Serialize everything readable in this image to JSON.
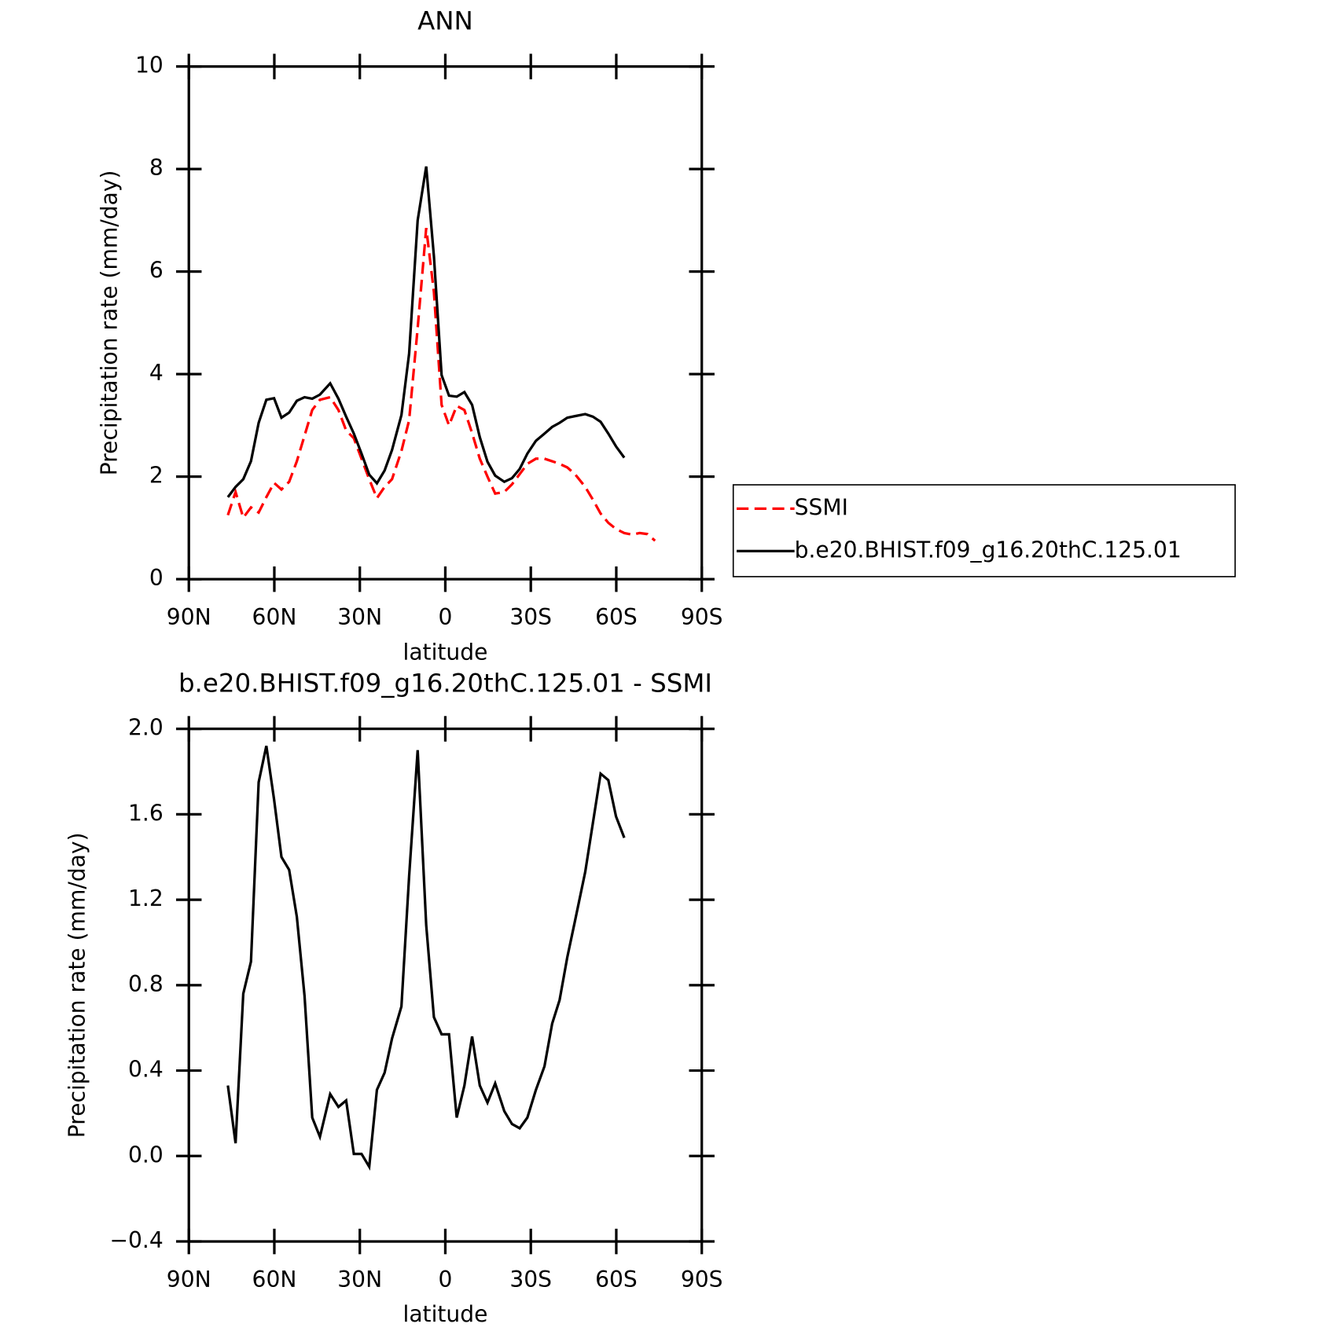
{
  "chart_data": [
    {
      "type": "line",
      "title": "ANN",
      "xlabel": "latitude",
      "ylabel": "Precipitation rate (mm/day)",
      "x": [
        76.3,
        73.6,
        70.9,
        68.2,
        65.5,
        62.8,
        60.1,
        57.5,
        54.8,
        52.1,
        49.4,
        46.7,
        44.0,
        40.4,
        37.5,
        34.8,
        32.1,
        29.4,
        26.7,
        24.0,
        21.3,
        18.7,
        15.4,
        12.7,
        9.7,
        6.7,
        4.0,
        1.3,
        -1.3,
        -4.0,
        -6.7,
        -9.4,
        -12.1,
        -14.8,
        -17.5,
        -20.7,
        -23.4,
        -26.1,
        -28.8,
        -31.8,
        -34.8,
        -37.5,
        -40.1,
        -42.8,
        -45.5,
        -49.1,
        -51.8,
        -54.5,
        -57.2,
        -59.9,
        -62.8,
        -65.5,
        -68.2,
        -70.9,
        -73.6
      ],
      "series": [
        {
          "name": "SSMI",
          "color": "#ff0000",
          "dashed": true,
          "values": [
            1.25,
            1.7,
            1.2,
            1.4,
            1.3,
            1.6,
            1.88,
            1.75,
            1.9,
            2.3,
            2.8,
            3.3,
            3.5,
            3.55,
            3.3,
            2.9,
            2.75,
            2.35,
            1.95,
            1.58,
            1.8,
            1.95,
            2.5,
            3.1,
            4.9,
            6.85,
            5.6,
            3.4,
            3.0,
            3.38,
            3.3,
            2.85,
            2.35,
            2.0,
            1.67,
            1.7,
            1.85,
            2.05,
            2.25,
            2.35,
            2.35,
            2.3,
            2.25,
            2.18,
            2.05,
            1.8,
            1.55,
            1.28,
            1.1,
            0.98,
            0.9,
            0.87,
            0.9,
            0.88,
            0.75
          ]
        },
        {
          "name": "b.e20.BHIST.f09_g16.20thC.125.01",
          "color": "#000000",
          "dashed": false,
          "values": [
            1.6,
            1.8,
            1.95,
            2.3,
            3.05,
            3.5,
            3.53,
            3.15,
            3.25,
            3.48,
            3.55,
            3.52,
            3.6,
            3.82,
            3.52,
            3.17,
            2.84,
            2.45,
            2.04,
            1.87,
            2.12,
            2.52,
            3.2,
            4.4,
            7.0,
            8.05,
            6.3,
            3.98,
            3.58,
            3.56,
            3.65,
            3.4,
            2.77,
            2.29,
            2.02,
            1.9,
            1.97,
            2.15,
            2.45,
            2.7,
            2.84,
            2.97,
            3.05,
            3.15,
            3.18,
            3.22,
            3.17,
            3.07,
            2.84,
            2.59,
            2.37,
            null,
            null,
            null,
            null
          ]
        }
      ],
      "xlim": [
        90,
        -90
      ],
      "xticks": [
        {
          "value": 90,
          "label": "90N"
        },
        {
          "value": 60,
          "label": "60N"
        },
        {
          "value": 30,
          "label": "30N"
        },
        0,
        {
          "value": -30,
          "label": "30S"
        },
        {
          "value": -60,
          "label": "60S"
        },
        {
          "value": -90,
          "label": "90S"
        }
      ],
      "ylim": [
        0,
        10
      ],
      "yticks": [
        0,
        2,
        4,
        6,
        8,
        10
      ],
      "legend": "right"
    },
    {
      "type": "line",
      "title": "b.e20.BHIST.f09_g16.20thC.125.01 - SSMI",
      "xlabel": "latitude",
      "ylabel": "Precipitation rate (mm/day)",
      "x": [
        76.3,
        73.6,
        70.9,
        68.2,
        65.5,
        62.8,
        60.1,
        57.5,
        54.8,
        52.1,
        49.4,
        46.7,
        44.0,
        40.4,
        37.5,
        34.8,
        32.1,
        29.4,
        26.7,
        24.0,
        21.3,
        18.7,
        15.4,
        12.7,
        9.7,
        6.7,
        4.0,
        1.3,
        -1.3,
        -4.0,
        -6.7,
        -9.4,
        -12.1,
        -14.8,
        -17.5,
        -20.7,
        -23.4,
        -26.1,
        -28.8,
        -31.8,
        -34.8,
        -37.5,
        -40.1,
        -42.8,
        -45.5,
        -49.1,
        -51.8,
        -54.5,
        -57.2,
        -59.9,
        -62.8
      ],
      "values": [
        0.33,
        0.06,
        0.76,
        0.91,
        1.75,
        1.92,
        1.67,
        1.4,
        1.34,
        1.12,
        0.75,
        0.18,
        0.09,
        0.29,
        0.23,
        0.26,
        0.01,
        0.01,
        -0.05,
        0.31,
        0.39,
        0.55,
        0.7,
        1.31,
        1.9,
        1.08,
        0.65,
        0.57,
        0.57,
        0.18,
        0.33,
        0.56,
        0.33,
        0.25,
        0.34,
        0.21,
        0.15,
        0.13,
        0.18,
        0.31,
        0.42,
        0.62,
        0.73,
        0.93,
        1.1,
        1.33,
        1.56,
        1.79,
        1.76,
        1.59,
        1.49
      ],
      "color": "#000000",
      "xlim": [
        90,
        -90
      ],
      "xticks": [
        {
          "value": 90,
          "label": "90N"
        },
        {
          "value": 60,
          "label": "60N"
        },
        {
          "value": 30,
          "label": "30N"
        },
        0,
        {
          "value": -30,
          "label": "30S"
        },
        {
          "value": -60,
          "label": "60S"
        },
        {
          "value": -90,
          "label": "90S"
        }
      ],
      "ylim": [
        -0.4,
        2.0
      ],
      "yticks": [
        {
          "value": -0.4,
          "label": "−0.4"
        },
        {
          "value": 0,
          "label": "0.0"
        },
        {
          "value": 0.4,
          "label": "0.4"
        },
        {
          "value": 0.8,
          "label": "0.8"
        },
        {
          "value": 1.2,
          "label": "1.2"
        },
        {
          "value": 1.6,
          "label": "1.6"
        },
        {
          "value": 2.0,
          "label": "2.0"
        }
      ]
    }
  ]
}
